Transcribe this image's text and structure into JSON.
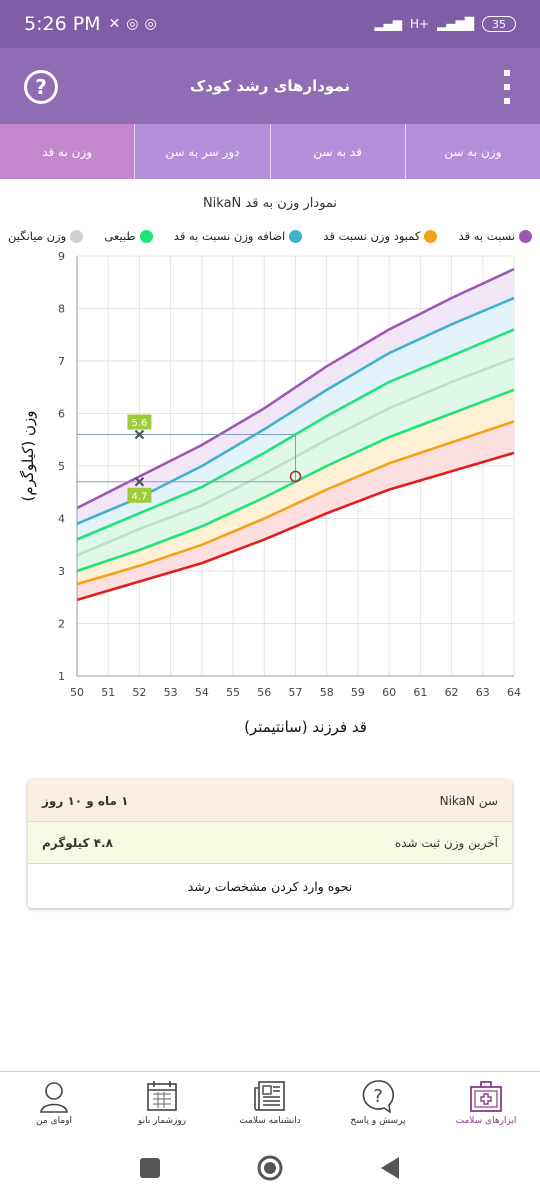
{
  "status_bar": {
    "time": "5:26 PM",
    "network": "H+",
    "battery": "35"
  },
  "app_bar": {
    "title": "نمودارهای رشد کودک"
  },
  "tabs": [
    {
      "label": "وزن به قد",
      "active": true
    },
    {
      "label": "دور سر به سن",
      "active": false
    },
    {
      "label": "قد به سن",
      "active": false
    },
    {
      "label": "وزن به سن",
      "active": false
    }
  ],
  "chart_title": "نمودار وزن به قد NikaN",
  "legend": [
    {
      "label": "نسبت به قد",
      "color": "#a156b5"
    },
    {
      "label": "کمبود وزن نسبت قد",
      "color": "#f2a31b"
    },
    {
      "label": "اضافه وزن نسبت به قد",
      "color": "#3fb1cf"
    },
    {
      "label": "طبیعی",
      "color": "#1fe27a"
    },
    {
      "label": "وزن میانگین",
      "color": "#d0d0d0"
    }
  ],
  "chart_data": {
    "type": "line",
    "xlabel": "قد فرزند (سانتیمتر)",
    "ylabel": "وزن (کیلوگرم)",
    "xlim": [
      50,
      64
    ],
    "ylim": [
      1,
      9
    ],
    "x_ticks": [
      50,
      51,
      52,
      53,
      54,
      55,
      56,
      57,
      58,
      59,
      60,
      61,
      62,
      63,
      64
    ],
    "y_ticks": [
      1,
      2,
      3,
      4,
      5,
      6,
      7,
      8,
      9
    ],
    "grid": true,
    "x": [
      50,
      52,
      54,
      56,
      58,
      60,
      62,
      64
    ],
    "series": [
      {
        "color": "#a156b5",
        "values": [
          4.2,
          4.8,
          5.4,
          6.1,
          6.9,
          7.6,
          8.2,
          8.75
        ]
      },
      {
        "color": "#3fb1cf",
        "values": [
          3.9,
          4.4,
          5.0,
          5.7,
          6.45,
          7.15,
          7.7,
          8.2
        ]
      },
      {
        "color": "#1fe27a",
        "values": [
          3.6,
          4.1,
          4.6,
          5.25,
          5.95,
          6.6,
          7.1,
          7.6
        ]
      },
      {
        "color": "#bfe0cc",
        "values": [
          3.3,
          3.8,
          4.25,
          4.85,
          5.5,
          6.1,
          6.6,
          7.05
        ]
      },
      {
        "color": "#1fe27a",
        "values": [
          3.0,
          3.4,
          3.85,
          4.4,
          5.0,
          5.55,
          6.0,
          6.45
        ]
      },
      {
        "color": "#f2a31b",
        "values": [
          2.75,
          3.1,
          3.5,
          4.0,
          4.55,
          5.05,
          5.45,
          5.85
        ]
      },
      {
        "color": "#e01e1e",
        "values": [
          2.45,
          2.8,
          3.15,
          3.6,
          4.1,
          4.55,
          4.9,
          5.25
        ]
      }
    ],
    "bands": [
      "#f1e4f5",
      "#e0f2f8",
      "#dbf7e6",
      "#dbf7e6",
      "#fff0d2",
      "#fddcdc"
    ],
    "markers": [
      {
        "x": 52,
        "y": 5.6,
        "shape": "x",
        "label": "5.6"
      },
      {
        "x": 52,
        "y": 4.7,
        "shape": "x",
        "label": "4.7"
      },
      {
        "x": 57,
        "y": 4.8,
        "shape": "circle"
      }
    ],
    "reference_lines": [
      {
        "from": [
          50,
          5.6
        ],
        "to": [
          57,
          5.6
        ]
      },
      {
        "from": [
          50,
          4.7
        ],
        "to": [
          57,
          4.7
        ]
      },
      {
        "from": [
          57,
          5.6
        ],
        "to": [
          57,
          4.7
        ]
      }
    ]
  },
  "info": {
    "age_label": "سن NikaN",
    "age_value": "۱ ماه و ۱۰ روز",
    "weight_label": "آخرین وزن ثبت شده",
    "weight_value": "۴.۸ کیلوگرم",
    "help_link": "نحوه وارد کردن مشخصات رشد"
  },
  "bottom_nav": [
    {
      "label": "اومای من",
      "icon": "person-icon"
    },
    {
      "label": "روزشمار بانو",
      "icon": "calendar-icon"
    },
    {
      "label": "دانشنامه سلامت",
      "icon": "newspaper-icon"
    },
    {
      "label": "پرسش و پاسخ",
      "icon": "question-bubble-icon"
    },
    {
      "label": "ابزارهای سلامت",
      "icon": "medical-kit-icon",
      "active": true
    }
  ]
}
